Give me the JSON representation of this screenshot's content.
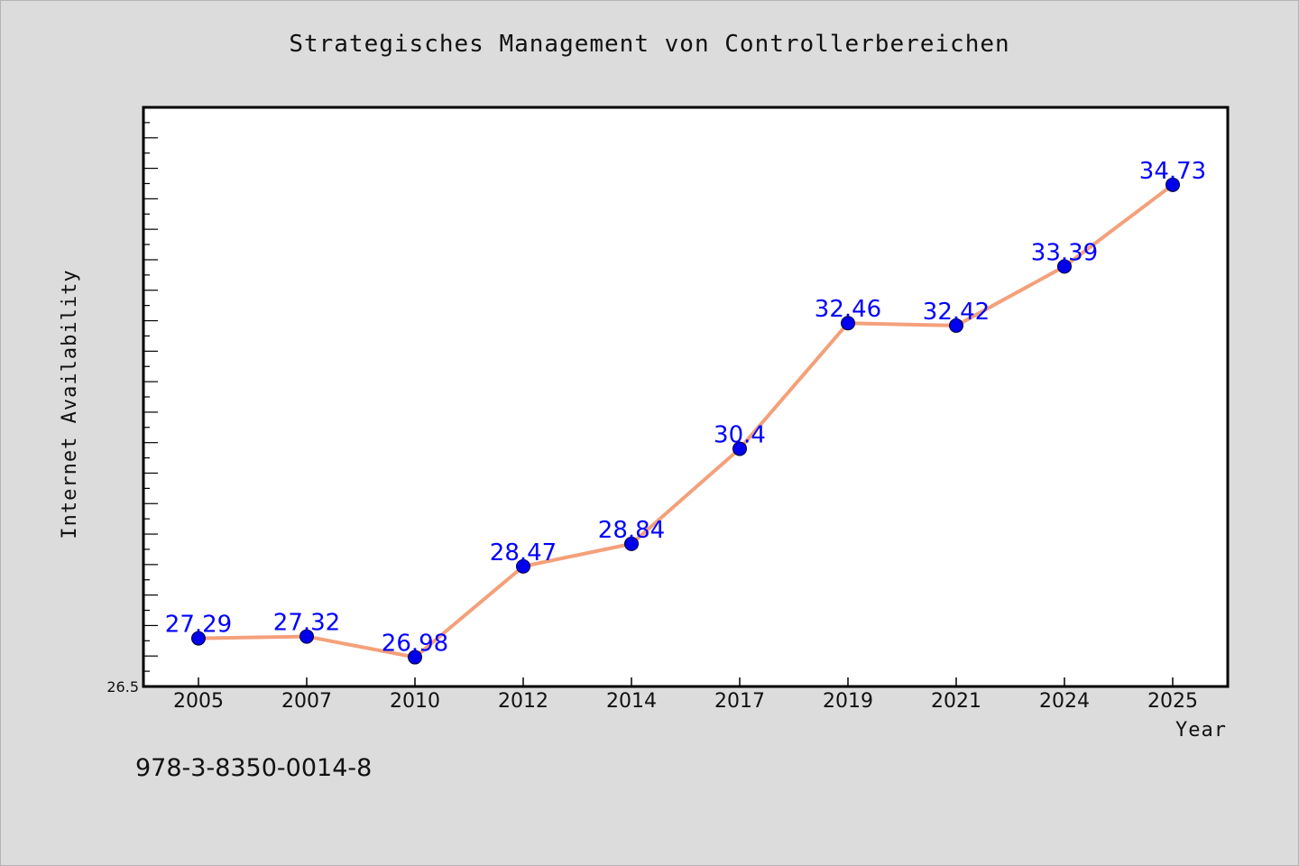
{
  "chart_data": {
    "type": "line",
    "title": "Strategisches Management von Controllerbereichen",
    "xlabel": "Year",
    "ylabel": "Internet Availability",
    "categories": [
      "2005",
      "2007",
      "2010",
      "2012",
      "2014",
      "2017",
      "2019",
      "2021",
      "2024",
      "2025"
    ],
    "values": [
      27.29,
      27.32,
      26.98,
      28.47,
      28.84,
      30.4,
      32.46,
      32.42,
      33.39,
      34.73
    ],
    "data_labels": [
      "27.29",
      "27.32",
      "26.98",
      "28.47",
      "28.84",
      "30.4",
      "32.46",
      "32.42",
      "33.39",
      "34.73"
    ],
    "ylim": [
      26.5,
      36.0
    ],
    "y_min_label": "26.5",
    "grid": false,
    "line_color": "#f4a07a",
    "marker_color": "#0000ee",
    "label_color": "#0000ff"
  },
  "footer": {
    "code": "978-3-8350-0014-8"
  }
}
